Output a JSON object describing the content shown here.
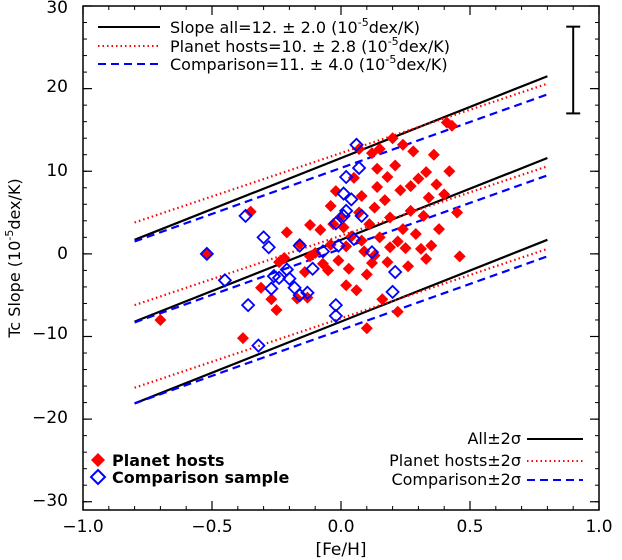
{
  "chart_data": {
    "type": "scatter",
    "xlabel": "[Fe/H]",
    "ylabel_main": "Tc Slope (10",
    "ylabel_sup": "-5",
    "ylabel_tail": "dex/K)",
    "xlim": [
      -1.0,
      1.0
    ],
    "ylim": [
      -31,
      30
    ],
    "xticks": [
      -1.0,
      -0.5,
      0.0,
      0.5,
      1.0
    ],
    "xtick_labels": [
      "−1.0",
      "−0.5",
      "0.0",
      "0.5",
      "1.0"
    ],
    "yticks": [
      -30,
      -20,
      -10,
      0,
      10,
      20,
      30
    ],
    "ytick_labels": [
      "−30",
      "−20",
      "−10",
      "0",
      "10",
      "20",
      "30"
    ],
    "top_legend": [
      {
        "prefix": "Slope all=12. ± 2.0 (10",
        "sup": "-5",
        "suffix": "dex/K)",
        "color": "#000000",
        "dash": "solid"
      },
      {
        "prefix": "Planet hosts=10. ± 2.8 (10",
        "sup": "-5",
        "suffix": "dex/K)",
        "color": "#ff0000",
        "dash": "dotted"
      },
      {
        "prefix": "Comparison=11. ± 4.0 (10",
        "sup": "-5",
        "suffix": "dex/K)",
        "color": "#0000ff",
        "dash": "dashed"
      }
    ],
    "marker_legend": [
      {
        "label": "Planet hosts",
        "color": "#ff0000",
        "marker": "filled-diamond"
      },
      {
        "label": "Comparison sample",
        "color": "#0000ff",
        "marker": "open-diamond"
      }
    ],
    "band_legend": [
      {
        "label": "All±2σ",
        "color": "#000000",
        "dash": "solid"
      },
      {
        "label": "Planet hosts±2σ",
        "color": "#ff0000",
        "dash": "dotted"
      },
      {
        "label": "Comparison±2σ",
        "color": "#0000ff",
        "dash": "dashed"
      }
    ],
    "fit_lines": [
      {
        "name": "all",
        "color": "#000000",
        "dash": "solid",
        "x": [
          -0.8,
          0.8
        ],
        "center": [
          -8.2,
          11.6
        ],
        "offset": 9.9
      },
      {
        "name": "planet",
        "color": "#ff0000",
        "dash": "dotted",
        "x": [
          -0.8,
          0.8
        ],
        "center": [
          -6.2,
          10.6
        ],
        "offset": 10.0
      },
      {
        "name": "comparison",
        "color": "#0000ff",
        "dash": "dashed",
        "x": [
          -0.8,
          0.8
        ],
        "center": [
          -8.3,
          9.5
        ],
        "offset": 9.8
      }
    ],
    "error_bar": {
      "x": 0.9,
      "low": 17.0,
      "high": 27.5
    },
    "series": [
      {
        "name": "Planet hosts",
        "color": "#ff0000",
        "marker": "filled-diamond",
        "points": [
          [
            -0.7,
            -8.0
          ],
          [
            -0.52,
            0.0
          ],
          [
            -0.38,
            -10.2
          ],
          [
            -0.35,
            5.1
          ],
          [
            -0.31,
            -4.1
          ],
          [
            -0.27,
            -5.5
          ],
          [
            -0.25,
            -6.8
          ],
          [
            -0.24,
            -1.0
          ],
          [
            -0.22,
            -0.5
          ],
          [
            -0.21,
            2.6
          ],
          [
            -0.17,
            -5.4
          ],
          [
            -0.16,
            1.2
          ],
          [
            -0.14,
            -2.2
          ],
          [
            -0.13,
            -5.3
          ],
          [
            -0.12,
            -0.3
          ],
          [
            -0.1,
            0.1
          ],
          [
            -0.08,
            2.9
          ],
          [
            -0.07,
            -1.2
          ],
          [
            -0.05,
            -2.0
          ],
          [
            -0.04,
            1.1
          ],
          [
            -0.04,
            5.8
          ],
          [
            -0.03,
            3.6
          ],
          [
            -0.02,
            7.6
          ],
          [
            -0.01,
            -0.8
          ],
          [
            0.0,
            4.5
          ],
          [
            0.01,
            3.2
          ],
          [
            0.02,
            0.9
          ],
          [
            0.03,
            -1.8
          ],
          [
            0.04,
            2.1
          ],
          [
            0.05,
            9.2
          ],
          [
            0.06,
            -4.4
          ],
          [
            0.07,
            5.0
          ],
          [
            0.08,
            7.0
          ],
          [
            0.08,
            1.6
          ],
          [
            0.09,
            0.3
          ],
          [
            0.1,
            -2.5
          ],
          [
            0.1,
            -9.0
          ],
          [
            0.11,
            3.6
          ],
          [
            0.12,
            12.2
          ],
          [
            0.13,
            5.6
          ],
          [
            0.13,
            -0.2
          ],
          [
            0.14,
            8.1
          ],
          [
            0.15,
            2.0
          ],
          [
            0.15,
            12.7
          ],
          [
            0.16,
            -5.5
          ],
          [
            0.17,
            6.5
          ],
          [
            0.18,
            -1.0
          ],
          [
            0.19,
            4.4
          ],
          [
            0.19,
            0.8
          ],
          [
            0.2,
            14.0
          ],
          [
            0.21,
            10.7
          ],
          [
            0.22,
            1.5
          ],
          [
            0.22,
            -7.0
          ],
          [
            0.23,
            7.7
          ],
          [
            0.24,
            3.0
          ],
          [
            0.25,
            0.7
          ],
          [
            0.26,
            -1.5
          ],
          [
            0.27,
            5.2
          ],
          [
            0.28,
            12.4
          ],
          [
            0.29,
            2.4
          ],
          [
            0.3,
            9.1
          ],
          [
            0.31,
            0.6
          ],
          [
            0.32,
            4.6
          ],
          [
            0.33,
            -0.6
          ],
          [
            0.34,
            6.8
          ],
          [
            0.35,
            1.0
          ],
          [
            0.36,
            12.0
          ],
          [
            0.37,
            8.4
          ],
          [
            0.38,
            3.0
          ],
          [
            0.4,
            7.2
          ],
          [
            0.41,
            15.9
          ],
          [
            0.42,
            10.0
          ],
          [
            0.43,
            15.5
          ],
          [
            0.45,
            5.0
          ],
          [
            0.46,
            -0.3
          ],
          [
            0.24,
            13.2
          ],
          [
            0.14,
            10.3
          ],
          [
            0.07,
            12.7
          ],
          [
            -0.12,
            3.5
          ],
          [
            0.02,
            -3.8
          ],
          [
            0.12,
            -1.1
          ],
          [
            0.18,
            9.3
          ],
          [
            0.27,
            8.2
          ],
          [
            0.33,
            9.9
          ]
        ]
      },
      {
        "name": "Comparison sample",
        "color": "#0000ff",
        "marker": "open-diamond",
        "points": [
          [
            -0.52,
            0.0
          ],
          [
            -0.45,
            -3.2
          ],
          [
            -0.37,
            4.6
          ],
          [
            -0.36,
            -6.2
          ],
          [
            -0.32,
            -11.1
          ],
          [
            -0.3,
            2.0
          ],
          [
            -0.28,
            0.8
          ],
          [
            -0.27,
            -4.2
          ],
          [
            -0.26,
            -2.7
          ],
          [
            -0.24,
            -2.9
          ],
          [
            -0.21,
            -1.9
          ],
          [
            -0.2,
            -3.0
          ],
          [
            -0.18,
            -4.1
          ],
          [
            -0.16,
            -5.0
          ],
          [
            -0.16,
            1.0
          ],
          [
            -0.13,
            -4.7
          ],
          [
            -0.11,
            -1.8
          ],
          [
            -0.07,
            0.3
          ],
          [
            -0.02,
            3.7
          ],
          [
            -0.02,
            -6.2
          ],
          [
            -0.02,
            -7.5
          ],
          [
            -0.01,
            1.0
          ],
          [
            0.01,
            7.3
          ],
          [
            0.01,
            4.6
          ],
          [
            0.02,
            9.3
          ],
          [
            0.02,
            5.2
          ],
          [
            0.04,
            6.6
          ],
          [
            0.05,
            1.8
          ],
          [
            0.06,
            13.2
          ],
          [
            0.07,
            10.4
          ],
          [
            0.08,
            4.6
          ],
          [
            0.12,
            0.2
          ],
          [
            0.2,
            -4.6
          ],
          [
            0.21,
            -2.2
          ]
        ]
      }
    ]
  }
}
